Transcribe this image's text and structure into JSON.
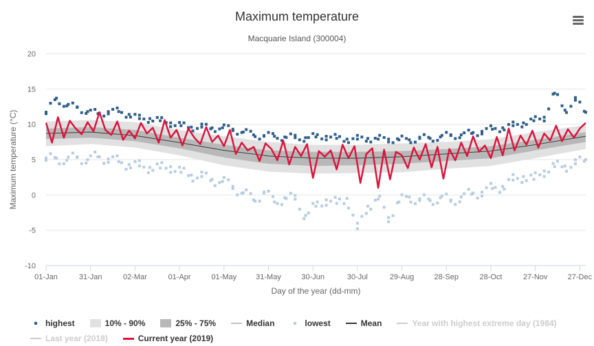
{
  "title": "Maximum temperature",
  "subtitle": "Macquarie Island (300004)",
  "menu_icon": "hamburger-menu-icon",
  "colors": {
    "highest": "#2f5d8c",
    "lowest": "#b7cce3",
    "band_10_90": "#e1e1e1",
    "band_25_75": "#b8b8b8",
    "median": "#c4c4c4",
    "mean": "#333333",
    "current": "#dc143c",
    "hidden": "#cccccc"
  },
  "legend": [
    {
      "key": "highest",
      "label": "highest",
      "symbol": "square",
      "color": "#2f5d8c",
      "hidden": false
    },
    {
      "key": "band_10_90",
      "label": "10% - 90%",
      "symbol": "box",
      "color": "#e1e1e1",
      "hidden": false
    },
    {
      "key": "band_25_75",
      "label": "25% - 75%",
      "symbol": "box",
      "color": "#b8b8b8",
      "hidden": false
    },
    {
      "key": "median",
      "label": "Median",
      "symbol": "line",
      "color": "#c4c4c4",
      "hidden": false
    },
    {
      "key": "lowest",
      "label": "lowest",
      "symbol": "square",
      "color": "#b7cce3",
      "hidden": false
    },
    {
      "key": "mean",
      "label": "Mean",
      "symbol": "line",
      "color": "#333333",
      "hidden": false
    },
    {
      "key": "year_highest",
      "label": "Year with highest extreme day (1984)",
      "symbol": "line",
      "color": "#cccccc",
      "hidden": true
    },
    {
      "key": "last_year",
      "label": "Last year (2018)",
      "symbol": "line",
      "color": "#cccccc",
      "hidden": true
    },
    {
      "key": "current",
      "label": "Current year (2019)",
      "symbol": "line",
      "color": "#dc143c",
      "hidden": false
    }
  ],
  "chart_data": {
    "type": "line",
    "title": "Maximum temperature",
    "subtitle": "Macquarie Island (300004)",
    "xlabel": "Day of the year (dd-mm)",
    "ylabel": "Maximum temperature (°C)",
    "ylim": [
      -10,
      20
    ],
    "yticks": [
      20,
      15,
      10,
      5,
      0,
      -5,
      -10
    ],
    "xlim": [
      1,
      365
    ],
    "xtick_labels": [
      "01-Jan",
      "31-Jan",
      "02-Mar",
      "01-Apr",
      "01-May",
      "31-May",
      "30-Jun",
      "30-Jul",
      "29-Aug",
      "28-Sep",
      "28-Oct",
      "27-Nov",
      "27-Dec"
    ],
    "xtick_days": [
      1,
      31,
      61,
      91,
      121,
      151,
      181,
      211,
      241,
      271,
      301,
      331,
      361
    ],
    "grid": true,
    "legend_position": "bottom",
    "series": [
      {
        "name": "highest",
        "type": "scatter",
        "x": [
          1,
          8,
          15,
          22,
          29,
          36,
          43,
          50,
          57,
          64,
          71,
          78,
          85,
          92,
          99,
          106,
          113,
          120,
          127,
          134,
          141,
          148,
          155,
          162,
          169,
          176,
          183,
          190,
          197,
          204,
          211,
          218,
          225,
          232,
          239,
          246,
          253,
          260,
          267,
          274,
          281,
          288,
          295,
          302,
          309,
          316,
          323,
          330,
          337,
          344,
          351,
          358,
          365
        ],
        "y": [
          11.5,
          13.7,
          12.6,
          12.4,
          11.8,
          11.5,
          11.8,
          11.8,
          11.4,
          10.8,
          10.8,
          10.5,
          10.2,
          9.8,
          9.6,
          9.6,
          9.5,
          9.5,
          9.3,
          8.9,
          8.5,
          8.4,
          8.3,
          8.2,
          8.1,
          8.1,
          8.2,
          8.3,
          8.0,
          7.9,
          7.9,
          8.0,
          7.9,
          7.9,
          7.8,
          7.8,
          8.0,
          8.0,
          8.2,
          8.4,
          8.5,
          8.7,
          9.0,
          9.3,
          9.5,
          9.8,
          10.2,
          10.5,
          11.0,
          14.4,
          12.0,
          13.4,
          11.7
        ]
      },
      {
        "name": "lowest",
        "type": "scatter",
        "x": [
          1,
          8,
          15,
          22,
          29,
          36,
          43,
          50,
          57,
          64,
          71,
          78,
          85,
          92,
          99,
          106,
          113,
          120,
          127,
          134,
          141,
          148,
          155,
          162,
          169,
          176,
          183,
          190,
          197,
          204,
          211,
          218,
          225,
          232,
          239,
          246,
          253,
          260,
          267,
          274,
          281,
          288,
          295,
          302,
          309,
          316,
          323,
          330,
          337,
          344,
          351,
          358,
          365
        ],
        "y": [
          4.9,
          5.2,
          4.9,
          5.3,
          5.0,
          5.4,
          5.1,
          4.7,
          4.3,
          4.1,
          3.9,
          3.8,
          4.0,
          3.2,
          2.8,
          2.6,
          2.2,
          1.9,
          1.2,
          0.3,
          -0.7,
          0.4,
          -1.0,
          -0.4,
          -0.6,
          -2.9,
          -1.6,
          -0.7,
          -1.2,
          -0.5,
          -4.8,
          -1.6,
          -0.6,
          -3.2,
          -1.0,
          -0.3,
          -0.8,
          -0.8,
          -0.4,
          -0.9,
          -0.3,
          0.1,
          0.4,
          0.9,
          1.2,
          2.1,
          2.6,
          2.2,
          3.4,
          4.0,
          4.1,
          4.4,
          5.0
        ]
      },
      {
        "name": "10% - 90%",
        "type": "arearange",
        "x": [
          1,
          31,
          61,
          91,
          121,
          151,
          181,
          211,
          241,
          271,
          301,
          331,
          365
        ],
        "low": [
          6.9,
          7.2,
          6.7,
          5.6,
          4.2,
          3.3,
          3.0,
          3.1,
          3.2,
          3.7,
          4.1,
          5.2,
          6.5
        ],
        "high": [
          10.4,
          10.6,
          10.3,
          9.2,
          8.3,
          7.5,
          7.1,
          7.1,
          7.3,
          7.5,
          7.9,
          8.9,
          9.9
        ]
      },
      {
        "name": "25% - 75%",
        "type": "arearange",
        "x": [
          1,
          31,
          61,
          91,
          121,
          151,
          181,
          211,
          241,
          271,
          301,
          331,
          365
        ],
        "low": [
          7.9,
          8.1,
          7.6,
          6.6,
          5.3,
          4.4,
          4.1,
          4.2,
          4.4,
          4.8,
          5.2,
          6.3,
          7.5
        ],
        "high": [
          9.4,
          9.6,
          9.2,
          8.1,
          7.1,
          6.3,
          6.1,
          6.1,
          6.2,
          6.5,
          6.9,
          7.8,
          8.9
        ]
      },
      {
        "name": "Median",
        "type": "line",
        "x": [
          1,
          31,
          61,
          91,
          121,
          151,
          181,
          211,
          241,
          271,
          301,
          331,
          365
        ],
        "y": [
          8.6,
          8.9,
          8.4,
          7.3,
          6.2,
          5.4,
          5.1,
          5.2,
          5.3,
          5.7,
          6.1,
          7.0,
          8.2
        ]
      },
      {
        "name": "Mean",
        "type": "line",
        "x": [
          1,
          31,
          61,
          91,
          121,
          151,
          181,
          211,
          241,
          271,
          301,
          331,
          365
        ],
        "y": [
          8.7,
          8.9,
          8.4,
          7.4,
          6.3,
          5.5,
          5.2,
          5.2,
          5.4,
          5.8,
          6.2,
          7.1,
          8.3
        ]
      },
      {
        "name": "Current year (2019)",
        "type": "line",
        "x": [
          1,
          5,
          9,
          13,
          17,
          21,
          25,
          29,
          33,
          37,
          41,
          45,
          49,
          53,
          57,
          61,
          65,
          69,
          73,
          77,
          81,
          85,
          89,
          93,
          97,
          101,
          105,
          109,
          113,
          117,
          121,
          125,
          129,
          133,
          137,
          141,
          145,
          149,
          153,
          157,
          161,
          165,
          169,
          173,
          177,
          181,
          185,
          189,
          193,
          197,
          201,
          205,
          209,
          213,
          217,
          221,
          225,
          229,
          233,
          237,
          241,
          245,
          249,
          253,
          257,
          261,
          265,
          269,
          273,
          277,
          281,
          285,
          289,
          293,
          297,
          301,
          305,
          309,
          313,
          317,
          321,
          325,
          329,
          333,
          337,
          341,
          345,
          349,
          353,
          357,
          361,
          365
        ],
        "y": [
          10.2,
          7.4,
          11.0,
          8.1,
          10.5,
          9.4,
          8.6,
          10.3,
          9.0,
          11.7,
          9.2,
          8.5,
          10.4,
          7.8,
          9.1,
          8.0,
          10.2,
          8.7,
          9.5,
          7.4,
          10.6,
          8.1,
          9.2,
          7.0,
          9.4,
          8.1,
          7.2,
          9.6,
          7.5,
          8.4,
          6.9,
          9.2,
          5.8,
          7.4,
          6.3,
          6.8,
          4.8,
          7.3,
          6.5,
          4.9,
          7.7,
          4.3,
          6.8,
          5.5,
          7.2,
          2.4,
          6.2,
          5.4,
          6.3,
          3.6,
          7.1,
          5.2,
          6.9,
          1.7,
          5.8,
          6.6,
          1.0,
          6.4,
          2.2,
          6.1,
          5.6,
          3.8,
          6.7,
          5.0,
          7.2,
          3.9,
          6.8,
          2.3,
          6.5,
          4.9,
          7.4,
          5.5,
          8.3,
          6.1,
          7.0,
          5.2,
          8.2,
          5.6,
          9.4,
          6.3,
          8.4,
          7.1,
          9.1,
          6.7,
          8.7,
          7.7,
          9.8,
          7.6,
          9.3,
          8.1,
          9.4,
          10.2
        ]
      }
    ]
  }
}
